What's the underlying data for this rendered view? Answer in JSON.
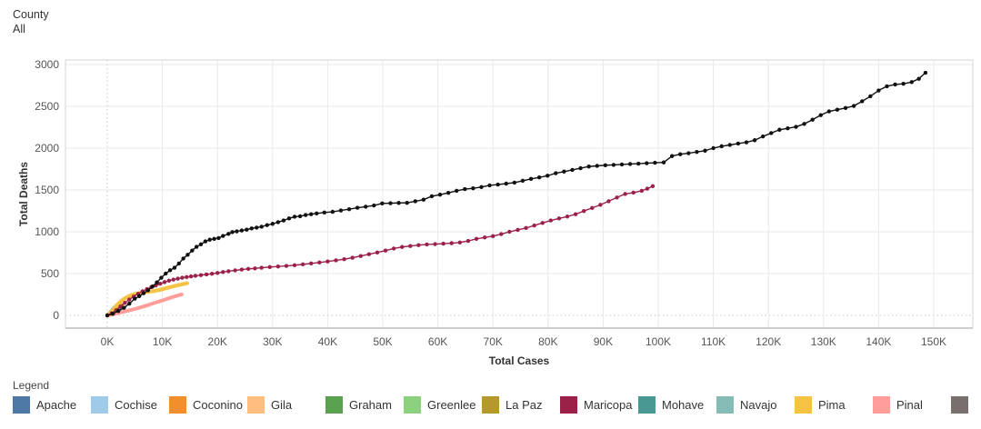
{
  "filter": {
    "label": "County",
    "value": "All"
  },
  "legend": {
    "title": "Legend",
    "items": [
      {
        "label": "Apache",
        "color": "#4E79A7"
      },
      {
        "label": "Cochise",
        "color": "#A0CBE8"
      },
      {
        "label": "Coconino",
        "color": "#F28E2B"
      },
      {
        "label": "Gila",
        "color": "#FFBE7D"
      },
      {
        "label": "Graham",
        "color": "#59A14F"
      },
      {
        "label": "Greenlee",
        "color": "#8CD17D"
      },
      {
        "label": "La Paz",
        "color": "#B6992D"
      },
      {
        "label": "Maricopa",
        "color": "#9C2149"
      },
      {
        "label": "Mohave",
        "color": "#499894"
      },
      {
        "label": "Navajo",
        "color": "#86BCB6"
      },
      {
        "label": "Pima",
        "color": "#F6C243"
      },
      {
        "label": "Pinal",
        "color": "#FF9D9A"
      },
      {
        "label": "",
        "color": "#79706E"
      }
    ]
  },
  "chart_data": {
    "type": "line",
    "title": "",
    "xlabel": "Total Cases",
    "ylabel": "Total Deaths",
    "xlim_thousands": [
      0,
      150
    ],
    "ylim": [
      0,
      3000
    ],
    "grid": true,
    "x_tick_values": [
      0,
      10,
      20,
      30,
      40,
      50,
      60,
      70,
      80,
      90,
      100,
      110,
      120,
      130,
      140,
      150
    ],
    "x_tick_labels": [
      "0K",
      "10K",
      "20K",
      "30K",
      "40K",
      "50K",
      "60K",
      "70K",
      "80K",
      "90K",
      "100K",
      "110K",
      "120K",
      "130K",
      "140K",
      "150K"
    ],
    "y_ticks": [
      0,
      500,
      1000,
      1500,
      2000,
      2500,
      3000
    ],
    "series": [
      {
        "name": "Pinal",
        "color": "#FF9D9A",
        "marker": false,
        "width": 4,
        "points": [
          [
            0,
            0
          ],
          [
            0.5,
            5
          ],
          [
            1,
            12
          ],
          [
            1.5,
            20
          ],
          [
            2,
            28
          ],
          [
            2.5,
            36
          ],
          [
            3,
            44
          ],
          [
            3.5,
            52
          ],
          [
            4,
            60
          ],
          [
            4.5,
            68
          ],
          [
            5,
            76
          ],
          [
            5.5,
            85
          ],
          [
            6,
            95
          ],
          [
            6.5,
            105
          ],
          [
            7,
            115
          ],
          [
            7.5,
            126
          ],
          [
            8,
            137
          ],
          [
            8.5,
            148
          ],
          [
            9,
            158
          ],
          [
            9.5,
            168
          ],
          [
            10,
            178
          ],
          [
            10.5,
            190
          ],
          [
            11,
            200
          ],
          [
            11.5,
            212
          ],
          [
            12,
            222
          ],
          [
            12.5,
            232
          ],
          [
            13,
            242
          ],
          [
            13.5,
            250
          ]
        ]
      },
      {
        "name": "Navajo",
        "color": "#86BCB6",
        "marker": false,
        "width": 3.2,
        "points": [
          [
            0,
            5
          ],
          [
            0.3,
            25
          ],
          [
            0.6,
            50
          ],
          [
            0.9,
            75
          ],
          [
            1.2,
            95
          ],
          [
            1.5,
            110
          ],
          [
            1.8,
            122
          ],
          [
            2.1,
            132
          ],
          [
            2.4,
            140
          ]
        ]
      },
      {
        "name": "Mohave",
        "color": "#499894",
        "marker": false,
        "width": 3.2,
        "points": [
          [
            0,
            0
          ],
          [
            0.4,
            12
          ],
          [
            0.8,
            28
          ],
          [
            1.2,
            45
          ],
          [
            1.6,
            60
          ],
          [
            2,
            72
          ],
          [
            2.4,
            82
          ],
          [
            2.8,
            90
          ],
          [
            3.2,
            96
          ]
        ]
      },
      {
        "name": "Coconino",
        "color": "#F28E2B",
        "marker": false,
        "width": 4,
        "points": [
          [
            0,
            2
          ],
          [
            0.3,
            10
          ],
          [
            0.6,
            25
          ],
          [
            0.9,
            45
          ],
          [
            1.2,
            68
          ],
          [
            1.5,
            88
          ],
          [
            1.8,
            102
          ],
          [
            2.1,
            112
          ],
          [
            2.4,
            118
          ],
          [
            2.7,
            122
          ]
        ]
      },
      {
        "name": "Pima",
        "color": "#F6C243",
        "marker": false,
        "width": 4.2,
        "points": [
          [
            0,
            5
          ],
          [
            0.5,
            25
          ],
          [
            1,
            60
          ],
          [
            1.5,
            105
          ],
          [
            2,
            140
          ],
          [
            2.5,
            170
          ],
          [
            3,
            195
          ],
          [
            3.5,
            215
          ],
          [
            4,
            232
          ],
          [
            4.5,
            245
          ],
          [
            5,
            255
          ],
          [
            5.5,
            262
          ],
          [
            6,
            268
          ],
          [
            6.5,
            273
          ],
          [
            7,
            278
          ],
          [
            7.5,
            282
          ],
          [
            8,
            287
          ],
          [
            8.5,
            292
          ],
          [
            9,
            298
          ],
          [
            9.5,
            305
          ],
          [
            10,
            313
          ],
          [
            10.5,
            322
          ],
          [
            11,
            331
          ],
          [
            11.5,
            340
          ],
          [
            12,
            348
          ],
          [
            12.5,
            356
          ],
          [
            13,
            363
          ],
          [
            13.5,
            371
          ],
          [
            14,
            378
          ],
          [
            14.5,
            385
          ]
        ]
      },
      {
        "name": "Maricopa",
        "color": "#9C2149",
        "marker": true,
        "width": 1.4,
        "points": [
          [
            0,
            0
          ],
          [
            0.8,
            25
          ],
          [
            1.6,
            62
          ],
          [
            2.4,
            105
          ],
          [
            3.2,
            150
          ],
          [
            4,
            190
          ],
          [
            4.8,
            225
          ],
          [
            5.6,
            258
          ],
          [
            6.4,
            288
          ],
          [
            7.2,
            315
          ],
          [
            8,
            338
          ],
          [
            8.8,
            358
          ],
          [
            9.6,
            378
          ],
          [
            10.4,
            398
          ],
          [
            11.2,
            415
          ],
          [
            12,
            428
          ],
          [
            12.8,
            440
          ],
          [
            13.6,
            450
          ],
          [
            14.4,
            458
          ],
          [
            15.2,
            466
          ],
          [
            16,
            474
          ],
          [
            17,
            482
          ],
          [
            18,
            490
          ],
          [
            19,
            498
          ],
          [
            20,
            508
          ],
          [
            21,
            518
          ],
          [
            22,
            528
          ],
          [
            23.2,
            538
          ],
          [
            24.4,
            548
          ],
          [
            25.6,
            556
          ],
          [
            26.8,
            562
          ],
          [
            28,
            570
          ],
          [
            29.5,
            578
          ],
          [
            31,
            585
          ],
          [
            32.5,
            592
          ],
          [
            34,
            600
          ],
          [
            35.5,
            610
          ],
          [
            37,
            622
          ],
          [
            38.5,
            632
          ],
          [
            40,
            645
          ],
          [
            41.5,
            658
          ],
          [
            43,
            672
          ],
          [
            44.5,
            690
          ],
          [
            46,
            710
          ],
          [
            47.5,
            732
          ],
          [
            49,
            752
          ],
          [
            50.5,
            775
          ],
          [
            52,
            800
          ],
          [
            53.5,
            818
          ],
          [
            55,
            830
          ],
          [
            56.5,
            840
          ],
          [
            58,
            848
          ],
          [
            59.5,
            853
          ],
          [
            61,
            858
          ],
          [
            62.5,
            864
          ],
          [
            64,
            872
          ],
          [
            65.5,
            890
          ],
          [
            67,
            915
          ],
          [
            68.5,
            932
          ],
          [
            70,
            948
          ],
          [
            71.5,
            972
          ],
          [
            73,
            1000
          ],
          [
            74.5,
            1022
          ],
          [
            76,
            1045
          ],
          [
            77.5,
            1075
          ],
          [
            79,
            1105
          ],
          [
            80.5,
            1135
          ],
          [
            82,
            1160
          ],
          [
            83.5,
            1182
          ],
          [
            85,
            1210
          ],
          [
            86.5,
            1248
          ],
          [
            88,
            1285
          ],
          [
            89.5,
            1322
          ],
          [
            91,
            1365
          ],
          [
            92.5,
            1410
          ],
          [
            94,
            1452
          ],
          [
            95.5,
            1468
          ],
          [
            97,
            1490
          ],
          [
            98,
            1515
          ],
          [
            99,
            1545
          ]
        ]
      },
      {
        "name": "All",
        "color": "#111111",
        "marker": true,
        "width": 1.4,
        "points": [
          [
            0,
            0
          ],
          [
            1,
            20
          ],
          [
            2,
            52
          ],
          [
            3,
            90
          ],
          [
            4,
            140
          ],
          [
            5,
            200
          ],
          [
            5.8,
            230
          ],
          [
            6.6,
            265
          ],
          [
            7.4,
            300
          ],
          [
            8.2,
            345
          ],
          [
            9,
            395
          ],
          [
            9.8,
            450
          ],
          [
            10.6,
            500
          ],
          [
            11.4,
            540
          ],
          [
            12.2,
            570
          ],
          [
            13,
            620
          ],
          [
            13.8,
            680
          ],
          [
            14.6,
            725
          ],
          [
            15.4,
            775
          ],
          [
            16.2,
            820
          ],
          [
            17,
            850
          ],
          [
            17.8,
            885
          ],
          [
            18.6,
            905
          ],
          [
            19.4,
            915
          ],
          [
            20.2,
            925
          ],
          [
            21,
            950
          ],
          [
            22,
            975
          ],
          [
            22.7,
            996
          ],
          [
            23.5,
            1005
          ],
          [
            24.4,
            1015
          ],
          [
            25.3,
            1025
          ],
          [
            26.2,
            1040
          ],
          [
            27.1,
            1050
          ],
          [
            28,
            1060
          ],
          [
            29,
            1080
          ],
          [
            30,
            1095
          ],
          [
            31,
            1115
          ],
          [
            32,
            1135
          ],
          [
            33,
            1160
          ],
          [
            34,
            1180
          ],
          [
            35,
            1186
          ],
          [
            36,
            1200
          ],
          [
            37,
            1210
          ],
          [
            38,
            1219
          ],
          [
            39.4,
            1230
          ],
          [
            40.9,
            1239
          ],
          [
            42.4,
            1255
          ],
          [
            43.9,
            1270
          ],
          [
            45.4,
            1287
          ],
          [
            46.9,
            1300
          ],
          [
            48.4,
            1315
          ],
          [
            49.9,
            1339
          ],
          [
            51.4,
            1342
          ],
          [
            52.9,
            1345
          ],
          [
            54.4,
            1346
          ],
          [
            55.9,
            1365
          ],
          [
            57.4,
            1384
          ],
          [
            58.9,
            1425
          ],
          [
            60.4,
            1444
          ],
          [
            61.9,
            1465
          ],
          [
            63.4,
            1490
          ],
          [
            64.9,
            1510
          ],
          [
            66.4,
            1520
          ],
          [
            67.9,
            1535
          ],
          [
            69.4,
            1555
          ],
          [
            70.9,
            1565
          ],
          [
            72.4,
            1576
          ],
          [
            73.9,
            1588
          ],
          [
            75.4,
            1610
          ],
          [
            76.9,
            1632
          ],
          [
            78.4,
            1650
          ],
          [
            79.9,
            1670
          ],
          [
            81.4,
            1700
          ],
          [
            82.9,
            1720
          ],
          [
            84.4,
            1740
          ],
          [
            85.9,
            1760
          ],
          [
            87.4,
            1780
          ],
          [
            88.9,
            1788
          ],
          [
            90.4,
            1795
          ],
          [
            91.9,
            1800
          ],
          [
            93.4,
            1805
          ],
          [
            94.9,
            1810
          ],
          [
            96.4,
            1815
          ],
          [
            97.9,
            1820
          ],
          [
            99.4,
            1825
          ],
          [
            101,
            1830
          ],
          [
            102.5,
            1905
          ],
          [
            104,
            1927
          ],
          [
            105.5,
            1940
          ],
          [
            107,
            1955
          ],
          [
            108.5,
            1970
          ],
          [
            110,
            2000
          ],
          [
            111.5,
            2023
          ],
          [
            113,
            2038
          ],
          [
            114.5,
            2055
          ],
          [
            116,
            2070
          ],
          [
            117.5,
            2095
          ],
          [
            119,
            2140
          ],
          [
            120.5,
            2180
          ],
          [
            122,
            2220
          ],
          [
            123.5,
            2237
          ],
          [
            125,
            2255
          ],
          [
            126.5,
            2290
          ],
          [
            128,
            2340
          ],
          [
            129.5,
            2395
          ],
          [
            131,
            2440
          ],
          [
            132.5,
            2460
          ],
          [
            134,
            2480
          ],
          [
            135.5,
            2505
          ],
          [
            137,
            2560
          ],
          [
            138.5,
            2620
          ],
          [
            140,
            2690
          ],
          [
            141.5,
            2740
          ],
          [
            143,
            2761
          ],
          [
            144.5,
            2770
          ],
          [
            146,
            2790
          ],
          [
            147.3,
            2830
          ],
          [
            148.5,
            2902
          ]
        ]
      }
    ]
  }
}
